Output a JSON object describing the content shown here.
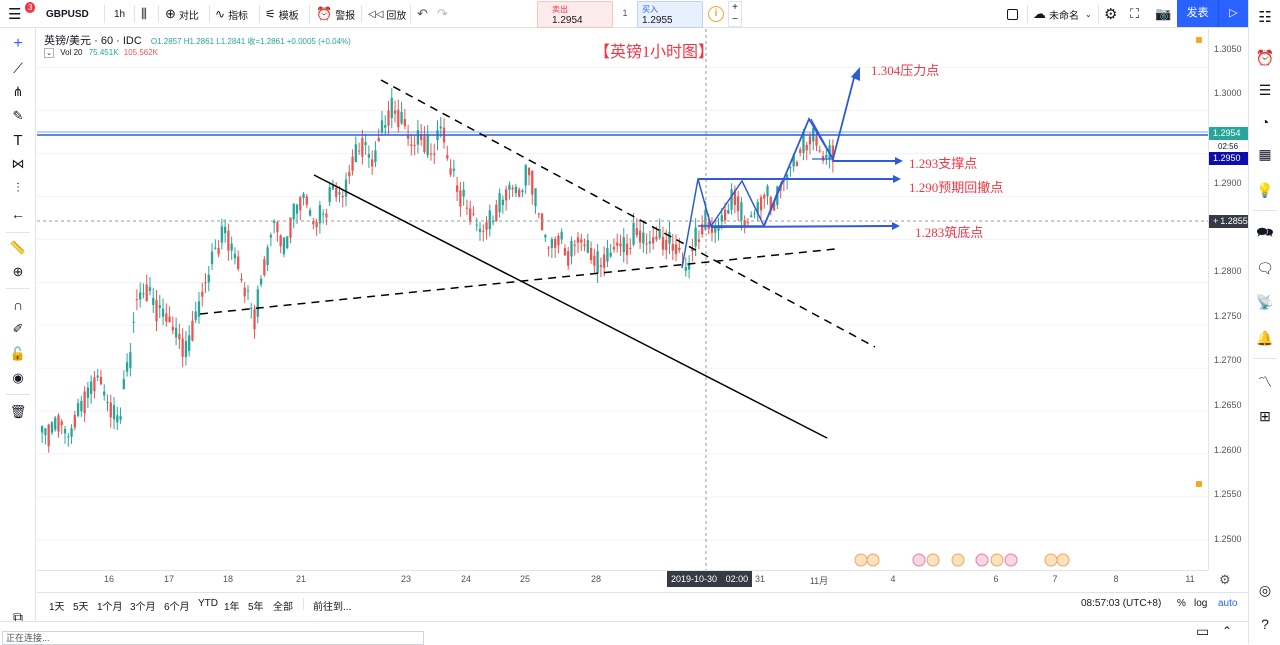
{
  "toolbar": {
    "notification_count": "3",
    "symbol": "GBPUSD",
    "interval": "1h",
    "compare": "对比",
    "indicators": "指标",
    "templates": "模板",
    "alert": "警报",
    "replay": "回放",
    "sell_label": "卖出",
    "sell_price": "1.2954",
    "spread": "1",
    "buy_label": "买入",
    "buy_price": "1.2955",
    "layout_name": "未命名",
    "publish": "发表"
  },
  "legend": {
    "title": "英镑/美元 · 60 · IDC",
    "ohlc": "O1.2857  H1.2861  L1.2841  收=1.2861  +0.0005 (+0.04%)",
    "vol_label": "Vol  20",
    "vol_value1": "75.451K",
    "vol_value2": "105.562K"
  },
  "annotations": {
    "title": "【英镑1小时图】",
    "resistance": "1.304压力点",
    "support": "1.293支撑点",
    "pullback": "1.290预期回撤点",
    "bottom": "1.283筑底点"
  },
  "price_axis": {
    "labels": [
      "1.3050",
      "1.3000",
      "1.2950",
      "1.2900",
      "1.2850",
      "1.2800",
      "1.2750",
      "1.2700",
      "1.2650",
      "1.2600",
      "1.2550",
      "1.2500"
    ],
    "badge_ask": "1.2954",
    "badge_countdown": "02:56",
    "badge_bid": "1.2950",
    "badge_crosshair": "1.2855"
  },
  "time_axis": {
    "labels": [
      "16",
      "17",
      "18",
      "21",
      "23",
      "24",
      "25",
      "28",
      "31",
      "11月",
      "4",
      "6",
      "7",
      "8",
      "11"
    ],
    "crosshair_date": "2019-10-30",
    "crosshair_time": "02:00"
  },
  "ranges": [
    "1天",
    "5天",
    "1个月",
    "3个月",
    "6个月",
    "YTD",
    "1年",
    "5年",
    "全部"
  ],
  "goto": "前往到...",
  "clock": "08:57:03 (UTC+8)",
  "scale_pct": "%",
  "scale_log": "log",
  "scale_auto": "auto",
  "status": "正在连接...",
  "colors": {
    "up": "#26a69a",
    "down": "#ef5350",
    "accent": "#2962ff",
    "annotation": "#f23645",
    "arrow": "#2e5cd6"
  },
  "chart_data": {
    "type": "candlestick",
    "symbol": "GBPUSD",
    "interval": "60",
    "ylim": [
      1.2465,
      1.3095
    ],
    "x_labels": [
      "16",
      "17",
      "18",
      "21",
      "23",
      "24",
      "25",
      "28",
      "31",
      "11月",
      "4",
      "6",
      "7",
      "8",
      "11"
    ],
    "closes": [
      1.2625,
      1.2638,
      1.262,
      1.265,
      1.267,
      1.269,
      1.266,
      1.264,
      1.27,
      1.278,
      1.279,
      1.277,
      1.276,
      1.274,
      1.272,
      1.276,
      1.28,
      1.284,
      1.286,
      1.283,
      1.279,
      1.276,
      1.282,
      1.287,
      1.284,
      1.288,
      1.29,
      1.287,
      1.288,
      1.291,
      1.29,
      1.294,
      1.296,
      1.294,
      1.298,
      1.3,
      1.299,
      1.296,
      1.297,
      1.295,
      1.298,
      1.293,
      1.29,
      1.288,
      1.286,
      1.287,
      1.289,
      1.291,
      1.2905,
      1.293,
      1.288,
      1.284,
      1.285,
      1.283,
      1.285,
      1.284,
      1.282,
      1.283,
      1.2845,
      1.284,
      1.286,
      1.2845,
      1.2852,
      1.2845,
      1.284,
      1.2815,
      1.285,
      1.287,
      1.286,
      1.288,
      1.29,
      1.287,
      1.288,
      1.29,
      1.289,
      1.292,
      1.294,
      1.296,
      1.297,
      1.2945,
      1.2952
    ],
    "lines": {
      "resistance_target": 1.304,
      "support": 1.293,
      "pullback": 1.29,
      "bottom": 1.283,
      "ask": 1.2954,
      "bid": 1.295,
      "crosshair": 1.2855
    }
  }
}
